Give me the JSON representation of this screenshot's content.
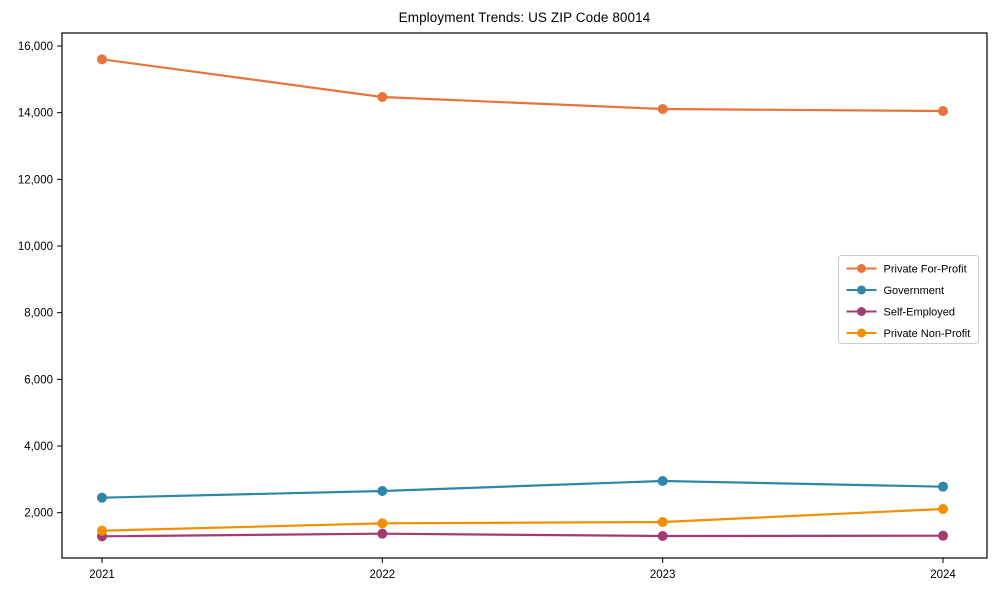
{
  "figure": {
    "background_color": "#ffffff",
    "frame_color": "#000000",
    "text_color": "#000000"
  },
  "chart_data": {
    "type": "line",
    "title": "Employment Trends: US ZIP Code 80014",
    "xlabel": "",
    "ylabel": "",
    "x": [
      "2021",
      "2022",
      "2023",
      "2024"
    ],
    "series": [
      {
        "name": "Private For-Profit",
        "color": "#E8743B",
        "values": [
          15600,
          14470,
          14110,
          14050
        ]
      },
      {
        "name": "Government",
        "color": "#2E86AB",
        "values": [
          2450,
          2650,
          2950,
          2780
        ]
      },
      {
        "name": "Self-Employed",
        "color": "#A23B72",
        "values": [
          1290,
          1370,
          1300,
          1310
        ]
      },
      {
        "name": "Private Non-Profit",
        "color": "#F18F01",
        "values": [
          1460,
          1680,
          1720,
          2110
        ]
      }
    ],
    "ylim": [
      640,
      16390
    ],
    "yticks": [
      2000,
      4000,
      6000,
      8000,
      10000,
      12000,
      14000,
      16000
    ],
    "ytick_labels": [
      "2,000",
      "4,000",
      "6,000",
      "8,000",
      "10,000",
      "12,000",
      "14,000",
      "16,000"
    ],
    "grid": false,
    "legend_position": "center-right",
    "marker": "circle"
  }
}
